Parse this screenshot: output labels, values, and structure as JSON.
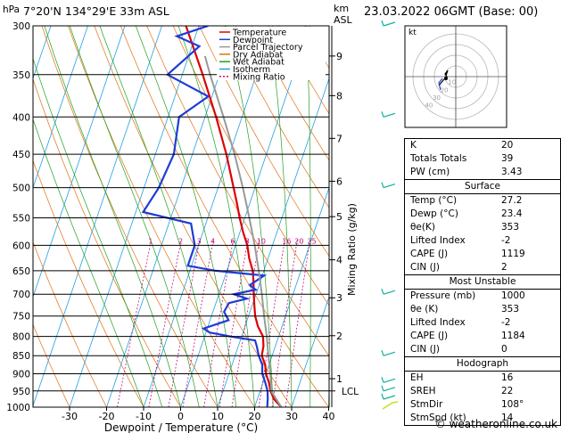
{
  "header": {
    "hpa_label": "hPa",
    "location": "7°20'N 134°29'E 33m ASL",
    "km_label": "km",
    "asl_label": "ASL",
    "date": "23.03.2022 06GMT (Base: 00)"
  },
  "legend": [
    {
      "label": "Temperature",
      "color": "#e00000",
      "dash": ""
    },
    {
      "label": "Dewpoint",
      "color": "#1e3cd8",
      "dash": ""
    },
    {
      "label": "Parcel Trajectory",
      "color": "#999999",
      "dash": ""
    },
    {
      "label": "Dry Adiabat",
      "color": "#e07010",
      "dash": ""
    },
    {
      "label": "Wet Adiabat",
      "color": "#20a020",
      "dash": ""
    },
    {
      "label": "Isotherm",
      "color": "#20a0e0",
      "dash": ""
    },
    {
      "label": "Mixing Ratio",
      "color": "#c0107a",
      "dash": "2,2"
    }
  ],
  "chart_data": {
    "type": "line",
    "title": "",
    "xlabel": "Dewpoint / Temperature (°C)",
    "ylabel_right": "Mixing Ratio (g/kg)",
    "x_ticks": [
      -30,
      -20,
      -10,
      0,
      10,
      20,
      30,
      40
    ],
    "xlim": [
      -40,
      40
    ],
    "ylim_hpa": [
      1000,
      300
    ],
    "pressure_levels": [
      300,
      350,
      400,
      450,
      500,
      550,
      600,
      650,
      700,
      750,
      800,
      850,
      900,
      950,
      1000
    ],
    "km_ticks": [
      {
        "km": 1,
        "p": 914
      },
      {
        "km": 2,
        "p": 798
      },
      {
        "km": 3,
        "p": 708
      },
      {
        "km": 4,
        "p": 628
      },
      {
        "km": 5,
        "p": 548
      },
      {
        "km": 6,
        "p": 490
      },
      {
        "km": 7,
        "p": 428
      },
      {
        "km": 8,
        "p": 374
      },
      {
        "km": 9,
        "p": 330
      }
    ],
    "lcl_label": "LCL",
    "lcl_p": 950,
    "mixing_ratio_labels": [
      "1",
      "2",
      "3",
      "4",
      "6",
      "8",
      "10",
      "16",
      "20",
      "25"
    ],
    "isopleth_labels": [
      "40",
      "30",
      "20",
      "10"
    ],
    "series": [
      {
        "name": "Temperature",
        "color": "#e00000",
        "points": [
          [
            1000,
            27.2
          ],
          [
            975,
            24.5
          ],
          [
            950,
            22.8
          ],
          [
            925,
            21.6
          ],
          [
            900,
            20.0
          ],
          [
            875,
            19.0
          ],
          [
            850,
            17.2
          ],
          [
            825,
            16.8
          ],
          [
            800,
            15.8
          ],
          [
            775,
            13.5
          ],
          [
            750,
            11.8
          ],
          [
            725,
            10.6
          ],
          [
            700,
            9.4
          ],
          [
            675,
            8.3
          ],
          [
            650,
            7.0
          ],
          [
            625,
            4.9
          ],
          [
            600,
            3.2
          ],
          [
            575,
            0.8
          ],
          [
            550,
            -1.4
          ],
          [
            525,
            -3.5
          ],
          [
            500,
            -5.8
          ],
          [
            450,
            -10.8
          ],
          [
            400,
            -17.0
          ],
          [
            350,
            -24.5
          ],
          [
            300,
            -33.5
          ]
        ]
      },
      {
        "name": "Dewpoint",
        "color": "#1e3cd8",
        "points": [
          [
            1000,
            23.4
          ],
          [
            975,
            22.8
          ],
          [
            950,
            22.0
          ],
          [
            925,
            20.6
          ],
          [
            900,
            19.0
          ],
          [
            875,
            18.2
          ],
          [
            850,
            16.4
          ],
          [
            825,
            15.0
          ],
          [
            810,
            14.0
          ],
          [
            800,
            7.0
          ],
          [
            790,
            1.0
          ],
          [
            780,
            -1.0
          ],
          [
            760,
            5.0
          ],
          [
            740,
            3.0
          ],
          [
            720,
            3.5
          ],
          [
            710,
            8.0
          ],
          [
            700,
            4.0
          ],
          [
            690,
            9.5
          ],
          [
            680,
            7.5
          ],
          [
            660,
            10.5
          ],
          [
            650,
            -3.0
          ],
          [
            640,
            -11.0
          ],
          [
            600,
            -11.0
          ],
          [
            560,
            -14.0
          ],
          [
            540,
            -28.0
          ],
          [
            500,
            -26.0
          ],
          [
            450,
            -25.0
          ],
          [
            400,
            -27.0
          ],
          [
            375,
            -21.0
          ],
          [
            350,
            -34.0
          ],
          [
            320,
            -28.0
          ],
          [
            310,
            -35.0
          ],
          [
            300,
            -27.5
          ]
        ]
      },
      {
        "name": "Parcel Trajectory",
        "color": "#999999",
        "points": [
          [
            1000,
            27.2
          ],
          [
            950,
            23.0
          ],
          [
            900,
            21.2
          ],
          [
            850,
            19.0
          ],
          [
            800,
            16.8
          ],
          [
            750,
            14.2
          ],
          [
            700,
            11.6
          ],
          [
            650,
            8.6
          ],
          [
            600,
            5.2
          ],
          [
            550,
            1.2
          ],
          [
            500,
            -3.3
          ],
          [
            450,
            -8.6
          ],
          [
            400,
            -15.0
          ],
          [
            350,
            -22.5
          ],
          [
            330,
            -25.6
          ]
        ]
      }
    ]
  },
  "hodograph": {
    "label": "kt",
    "rings": [
      "10",
      "20",
      "30",
      "40"
    ]
  },
  "indices": [
    {
      "label": "K",
      "value": "20"
    },
    {
      "label": "Totals Totals",
      "value": "39"
    },
    {
      "label": "PW (cm)",
      "value": "3.43"
    }
  ],
  "surface": {
    "title": "Surface",
    "rows": [
      {
        "label": "Temp (°C)",
        "value": "27.2"
      },
      {
        "label": "Dewp (°C)",
        "value": "23.4"
      },
      {
        "label": "θe(K)",
        "value": "353"
      },
      {
        "label": "Lifted Index",
        "value": "-2"
      },
      {
        "label": "CAPE (J)",
        "value": "1119"
      },
      {
        "label": "CIN (J)",
        "value": "2"
      }
    ]
  },
  "most_unstable": {
    "title": "Most Unstable",
    "rows": [
      {
        "label": "Pressure (mb)",
        "value": "1000"
      },
      {
        "label": "θe (K)",
        "value": "353"
      },
      {
        "label": "Lifted Index",
        "value": "-2"
      },
      {
        "label": "CAPE (J)",
        "value": "1184"
      },
      {
        "label": "CIN (J)",
        "value": "0"
      }
    ]
  },
  "hodograph_table": {
    "title": "Hodograph",
    "rows": [
      {
        "label": "EH",
        "value": "16"
      },
      {
        "label": "SREH",
        "value": "22"
      },
      {
        "label": "StmDir",
        "value": "108°"
      },
      {
        "label": "StmSpd (kt)",
        "value": "14"
      }
    ]
  },
  "credit": "© weatheronline.co.uk"
}
